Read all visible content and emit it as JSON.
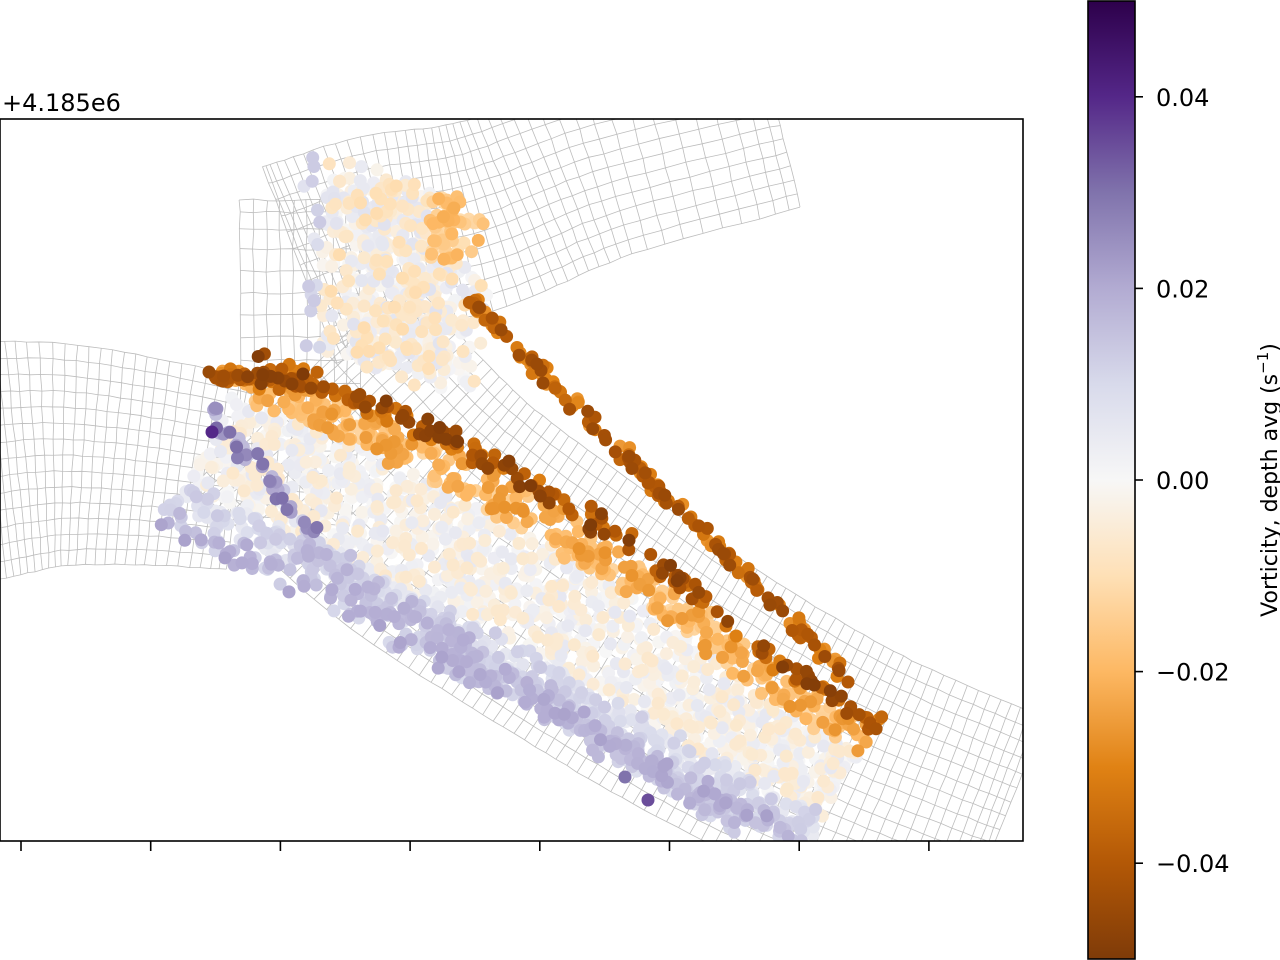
{
  "chart_data": {
    "type": "scatter",
    "title": "",
    "xlabel": "",
    "ylabel": "",
    "y_offset_label": "+4.185e6",
    "x_tick_count": 8,
    "x_tick_labels": [],
    "y_tick_labels": [],
    "background_mesh": {
      "present": true,
      "color": "#bdbdbd",
      "description_visible": false
    },
    "colorbar": {
      "label": "Vorticity, depth avg (s⁻¹)",
      "label_main": "Vorticity, depth avg (s",
      "label_sup": "−1",
      "label_close": ")",
      "colormap": "PuOr",
      "vmin": -0.05,
      "vmax": 0.05,
      "ticks": [
        0.04,
        0.02,
        0.0,
        -0.02,
        -0.04
      ],
      "tick_labels": [
        "0.04",
        "0.02",
        "0.00",
        "−0.02",
        "−0.04"
      ]
    },
    "grid": false,
    "legend": "none"
  }
}
